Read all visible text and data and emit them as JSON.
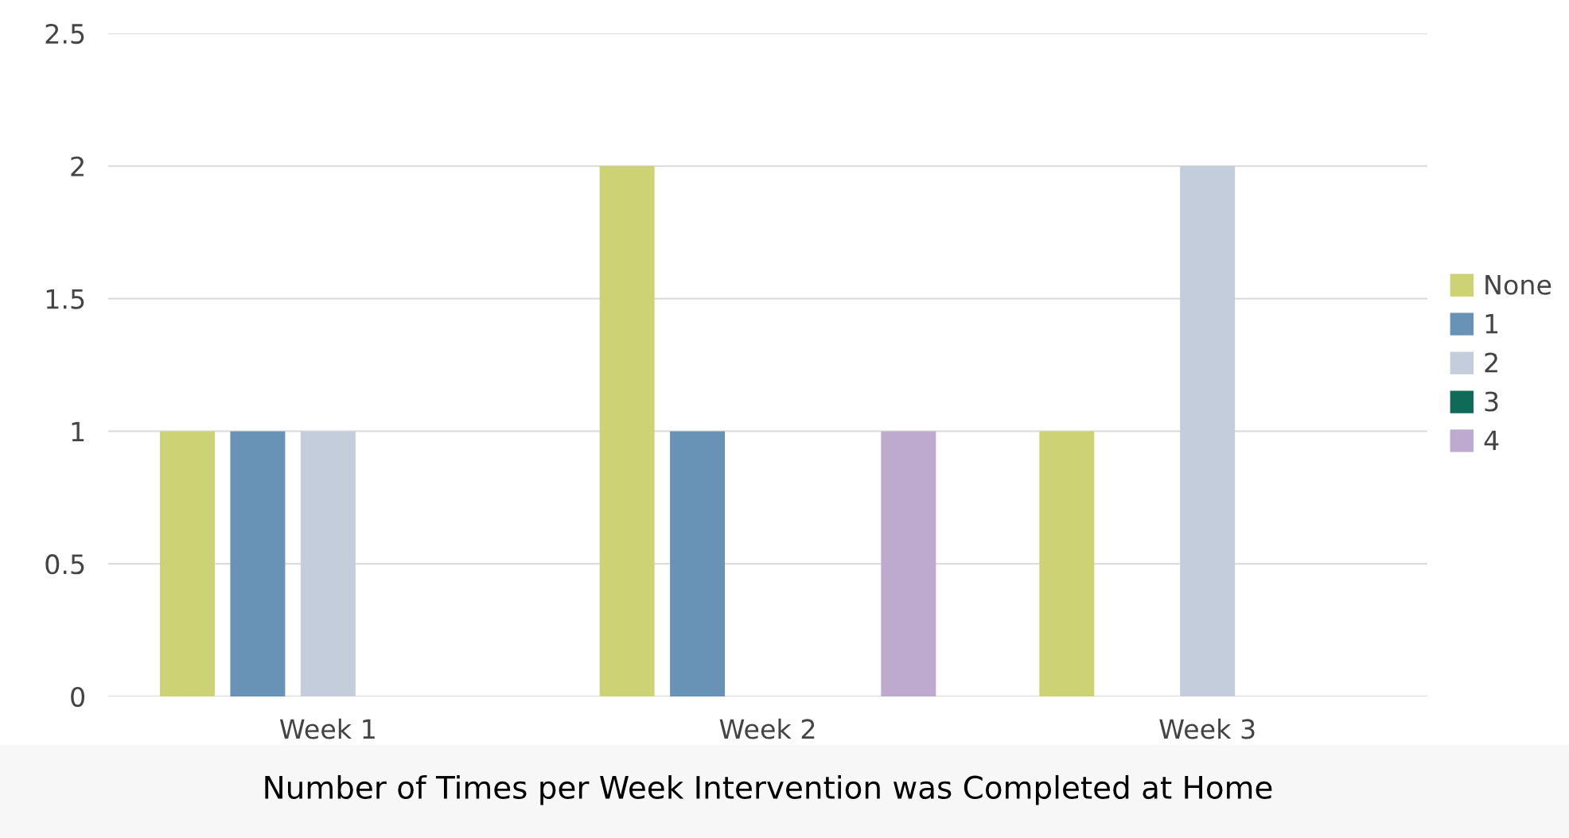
{
  "chart_data": {
    "type": "bar",
    "xlabel": "Number of Times per Week Intervention was Completed at Home",
    "categories": [
      "Week 1",
      "Week 2",
      "Week 3"
    ],
    "series": [
      {
        "name": "None",
        "color": "#cdd275",
        "values": [
          1,
          2,
          1
        ]
      },
      {
        "name": "1",
        "color": "#6893b6",
        "values": [
          1,
          1,
          0
        ]
      },
      {
        "name": "2",
        "color": "#c4cddc",
        "values": [
          1,
          0,
          2
        ]
      },
      {
        "name": "3",
        "color": "#0f6b58",
        "values": [
          0,
          0,
          0
        ]
      },
      {
        "name": "4",
        "color": "#bdaace",
        "values": [
          0,
          1,
          0
        ]
      }
    ],
    "ylim": [
      0,
      2.5
    ],
    "yticks": [
      0,
      0.5,
      1,
      1.5,
      2,
      2.5
    ],
    "grid": "y",
    "legend": "right"
  }
}
